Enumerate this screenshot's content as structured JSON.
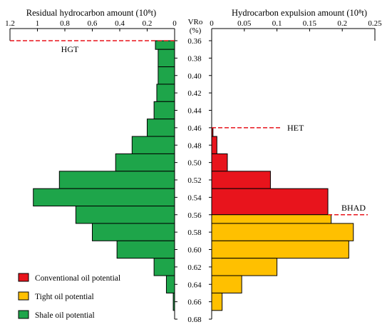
{
  "chart_data": {
    "type": "bar",
    "vro": {
      "label_line1": "VRo",
      "label_line2": "(%)",
      "ticks": [
        "0.36",
        "0.38",
        "0.40",
        "0.42",
        "0.44",
        "0.46",
        "0.48",
        "0.50",
        "0.52",
        "0.54",
        "0.56",
        "0.58",
        "0.60",
        "0.62",
        "0.64",
        "0.66",
        "0.68"
      ]
    },
    "left": {
      "title": "Residual hydrocarbon amount (10⁸t)",
      "xlim": [
        1.2,
        0
      ],
      "ticks": [
        "1.2",
        "1",
        "0.8",
        "0.6",
        "0.4",
        "0.2",
        "0"
      ],
      "bins": [
        {
          "from": 0.36,
          "to": 0.37,
          "value": 0.14
        },
        {
          "from": 0.37,
          "to": 0.39,
          "value": 0.12
        },
        {
          "from": 0.39,
          "to": 0.41,
          "value": 0.12
        },
        {
          "from": 0.41,
          "to": 0.43,
          "value": 0.13
        },
        {
          "from": 0.43,
          "to": 0.45,
          "value": 0.15
        },
        {
          "from": 0.45,
          "to": 0.47,
          "value": 0.2
        },
        {
          "from": 0.47,
          "to": 0.49,
          "value": 0.31
        },
        {
          "from": 0.49,
          "to": 0.51,
          "value": 0.43
        },
        {
          "from": 0.51,
          "to": 0.53,
          "value": 0.84
        },
        {
          "from": 0.53,
          "to": 0.55,
          "value": 1.03
        },
        {
          "from": 0.55,
          "to": 0.57,
          "value": 0.72
        },
        {
          "from": 0.57,
          "to": 0.59,
          "value": 0.6
        },
        {
          "from": 0.59,
          "to": 0.61,
          "value": 0.42
        },
        {
          "from": 0.61,
          "to": 0.63,
          "value": 0.15
        },
        {
          "from": 0.63,
          "to": 0.65,
          "value": 0.06
        },
        {
          "from": 0.65,
          "to": 0.67,
          "value": 0.01
        }
      ],
      "marker": {
        "label": "HGT",
        "vro": 0.36
      }
    },
    "right": {
      "title": "Hydrocarbon expulsion amount (10⁸t)",
      "xlim": [
        0,
        0.25
      ],
      "ticks": [
        "0",
        "0.05",
        "0.1",
        "0.15",
        "0.2",
        "0.25"
      ],
      "bins": [
        {
          "from": 0.46,
          "to": 0.47,
          "value": 0.002,
          "category": "conventional"
        },
        {
          "from": 0.47,
          "to": 0.49,
          "value": 0.008,
          "category": "conventional"
        },
        {
          "from": 0.49,
          "to": 0.51,
          "value": 0.024,
          "category": "conventional"
        },
        {
          "from": 0.51,
          "to": 0.53,
          "value": 0.09,
          "category": "conventional"
        },
        {
          "from": 0.53,
          "to": 0.56,
          "value": 0.178,
          "category": "conventional"
        },
        {
          "from": 0.56,
          "to": 0.57,
          "value": 0.183,
          "category": "tight"
        },
        {
          "from": 0.57,
          "to": 0.59,
          "value": 0.217,
          "category": "tight"
        },
        {
          "from": 0.59,
          "to": 0.61,
          "value": 0.21,
          "category": "tight"
        },
        {
          "from": 0.61,
          "to": 0.63,
          "value": 0.1,
          "category": "tight"
        },
        {
          "from": 0.63,
          "to": 0.65,
          "value": 0.046,
          "category": "tight"
        },
        {
          "from": 0.65,
          "to": 0.67,
          "value": 0.016,
          "category": "tight"
        }
      ],
      "markers": [
        {
          "label": "HET",
          "vro": 0.46
        },
        {
          "label": "BHAD",
          "vro": 0.56
        }
      ]
    },
    "legend": [
      {
        "label": "Conventional oil potential",
        "color": "#e8141c"
      },
      {
        "label": "Tight oil potential",
        "color": "#ffc000"
      },
      {
        "label": "Shale oil potential",
        "color": "#1ea54a"
      }
    ],
    "colors": {
      "shale": "#1ea54a",
      "conventional": "#e8141c",
      "tight": "#ffc000",
      "marker": "#e8141c"
    }
  }
}
